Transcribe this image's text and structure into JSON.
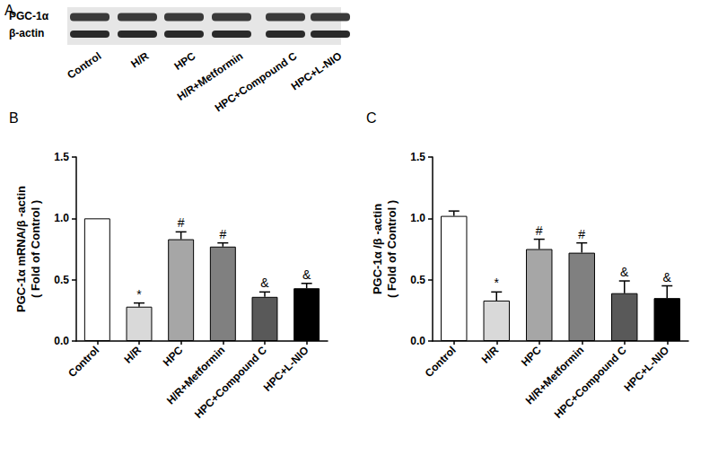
{
  "blot": {
    "panel": "A",
    "rows": [
      "PGC-1α",
      "β-actin"
    ],
    "lanes": [
      "Control",
      "H/R",
      "HPC",
      "H/R+Metformin",
      "HPC+Compound C",
      "HPC+L-NIO"
    ]
  },
  "chart_data": [
    {
      "type": "bar",
      "title": "B",
      "categories": [
        "Control",
        "H/R",
        "HPC",
        "H/R+Metformin",
        "HPC+Compound C",
        "HPC+L-NIO"
      ],
      "values": [
        1.0,
        0.28,
        0.83,
        0.77,
        0.36,
        0.43
      ],
      "errors": [
        0,
        0.03,
        0.06,
        0.03,
        0.04,
        0.04
      ],
      "annotations": [
        null,
        "*",
        "#",
        "#",
        "&",
        "&"
      ],
      "colors": [
        "#ffffff",
        "#d9d9d9",
        "#a6a6a6",
        "#808080",
        "#595959",
        "#000000"
      ],
      "ylabel": [
        "PGC-1α mRNA/β -actin",
        "( Fold of Control )"
      ],
      "ylim": [
        0,
        1.5
      ],
      "yticks": [
        {
          "value": 0,
          "label": "0.0"
        },
        {
          "value": 0.5,
          "label": "0.5"
        },
        {
          "value": 1,
          "label": "1.0"
        },
        {
          "value": 1.5,
          "label": "1.5"
        }
      ],
      "grid": false
    },
    {
      "type": "bar",
      "title": "C",
      "categories": [
        "Control",
        "H/R",
        "HPC",
        "H/R+Metformin",
        "HPC+Compound C",
        "HPC+L-NIO"
      ],
      "values": [
        1.02,
        0.33,
        0.75,
        0.72,
        0.39,
        0.35
      ],
      "errors": [
        0.04,
        0.07,
        0.08,
        0.08,
        0.1,
        0.1
      ],
      "annotations": [
        null,
        "*",
        "#",
        "#",
        "&",
        "&"
      ],
      "colors": [
        "#ffffff",
        "#d9d9d9",
        "#a6a6a6",
        "#808080",
        "#595959",
        "#000000"
      ],
      "ylabel": [
        "PGC-1α /β -actin",
        "( Fold of Control )"
      ],
      "ylim": [
        0,
        1.5
      ],
      "yticks": [
        {
          "value": 0,
          "label": "0.0"
        },
        {
          "value": 0.5,
          "label": "0.5"
        },
        {
          "value": 1,
          "label": "1.0"
        },
        {
          "value": 1.5,
          "label": "1.5"
        }
      ],
      "grid": false
    }
  ]
}
